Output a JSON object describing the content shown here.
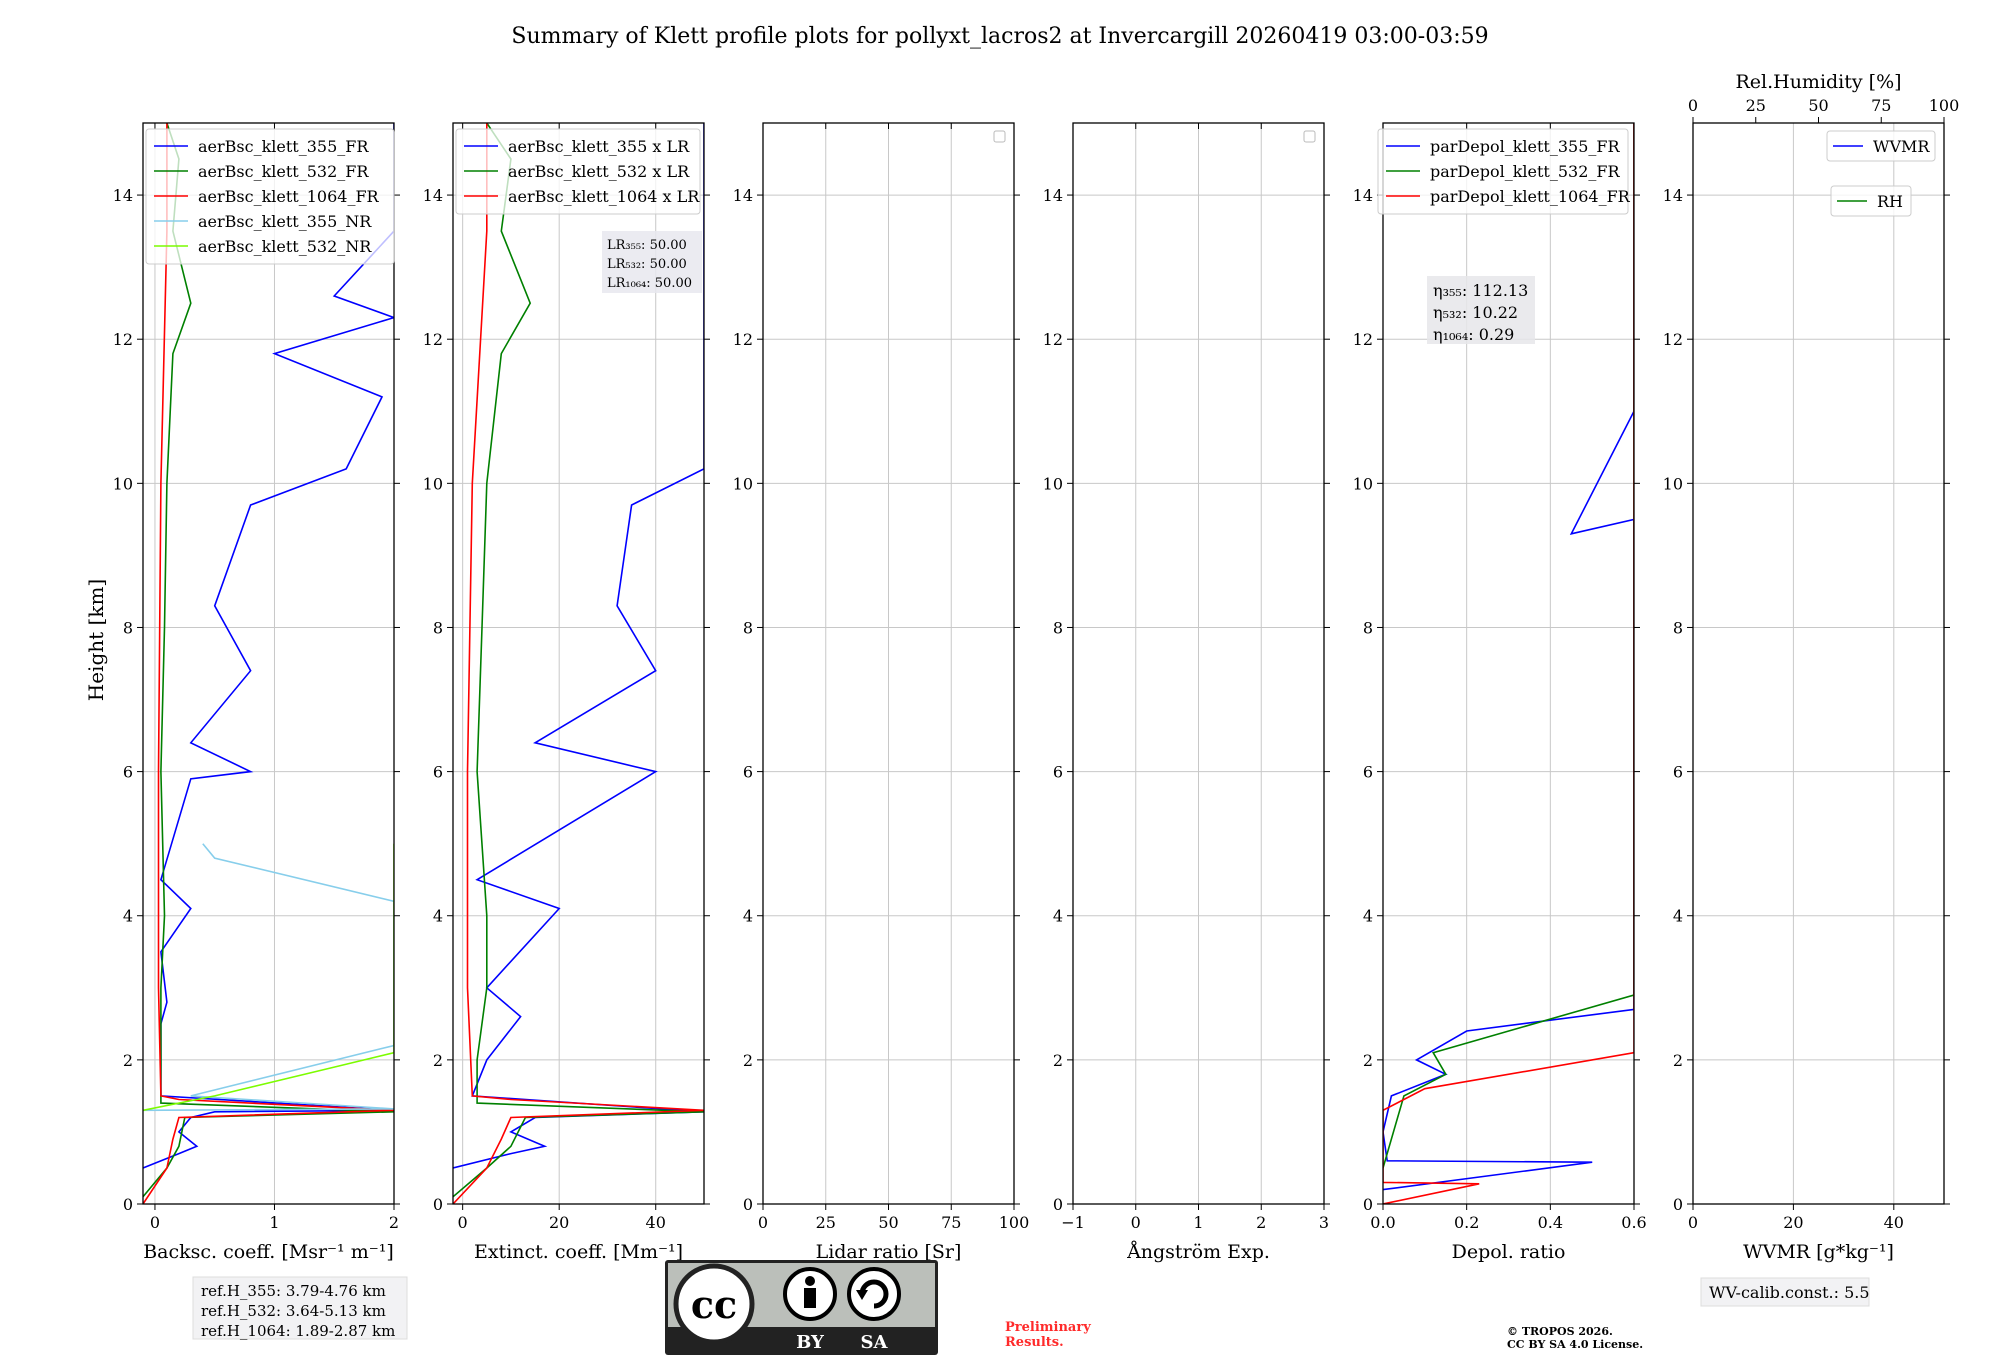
{
  "title": "Summary of Klett profile plots for pollyxt_lacros2 at Invercargill 20260419 03:00-03:59",
  "ylabel": "Height [km]",
  "colors": {
    "b355": "#0000ff",
    "b532": "#008000",
    "b1064": "#ff0000",
    "nr355": "#87ceeb",
    "nr532": "#7cfc00"
  },
  "chart_data": [
    {
      "type": "line",
      "name": "backscatter",
      "xlabel": "Backsc. coeff. [Msr⁻¹ m⁻¹]",
      "xlim": [
        -0.1,
        2
      ],
      "ylim": [
        0,
        15
      ],
      "xticks": [
        "0",
        "1",
        "2"
      ],
      "xtick_values": [
        0,
        1,
        2
      ],
      "legend": [
        "aerBsc_klett_355_FR",
        "aerBsc_klett_532_FR",
        "aerBsc_klett_1064_FR",
        "aerBsc_klett_355_NR",
        "aerBsc_klett_532_NR"
      ],
      "series": [
        {
          "name": "aerBsc_klett_355_FR",
          "color": "b355",
          "points": [
            [
              -0.1,
              0.5
            ],
            [
              0.2,
              0.7
            ],
            [
              0.35,
              0.8
            ],
            [
              0.2,
              1.0
            ],
            [
              0.3,
              1.2
            ],
            [
              0.5,
              1.28
            ],
            [
              2,
              1.3
            ],
            [
              0.05,
              1.5
            ],
            [
              0.05,
              2.5
            ],
            [
              0.1,
              2.8
            ],
            [
              0.05,
              3.5
            ],
            [
              0.3,
              4.1
            ],
            [
              0.05,
              4.5
            ],
            [
              0.3,
              5.9
            ],
            [
              0.8,
              6.0
            ],
            [
              0.3,
              6.4
            ],
            [
              0.8,
              7.4
            ],
            [
              0.5,
              8.3
            ],
            [
              0.8,
              9.7
            ],
            [
              1.6,
              10.2
            ],
            [
              1.9,
              11.2
            ],
            [
              1.0,
              11.8
            ],
            [
              2,
              12.3
            ],
            [
              1.5,
              12.6
            ],
            [
              2,
              13.5
            ],
            [
              2,
              14.3
            ],
            [
              2,
              14.8
            ],
            [
              2,
              15
            ]
          ]
        },
        {
          "name": "aerBsc_klett_532_FR",
          "color": "b532",
          "points": [
            [
              -0.1,
              0.1
            ],
            [
              0.1,
              0.5
            ],
            [
              0.2,
              0.8
            ],
            [
              0.25,
              1.2
            ],
            [
              2,
              1.28
            ],
            [
              0.05,
              1.4
            ],
            [
              0.05,
              2.0
            ],
            [
              0.05,
              3.0
            ],
            [
              0.08,
              4.0
            ],
            [
              0.05,
              6.0
            ],
            [
              0.08,
              8.0
            ],
            [
              0.1,
              10.0
            ],
            [
              0.15,
              11.8
            ],
            [
              0.3,
              12.5
            ],
            [
              0.15,
              13.5
            ],
            [
              0.2,
              14.5
            ],
            [
              0.1,
              15
            ]
          ]
        },
        {
          "name": "aerBsc_klett_1064_FR",
          "color": "b1064",
          "points": [
            [
              -0.1,
              0.0
            ],
            [
              0.1,
              0.5
            ],
            [
              0.15,
              0.9
            ],
            [
              0.2,
              1.2
            ],
            [
              2,
              1.3
            ],
            [
              0.2,
              1.45
            ],
            [
              0.05,
              1.5
            ],
            [
              0.03,
              3.0
            ],
            [
              0.03,
              6.0
            ],
            [
              0.05,
              10.0
            ],
            [
              0.1,
              13.5
            ],
            [
              0.1,
              15
            ]
          ]
        },
        {
          "name": "aerBsc_klett_355_NR",
          "color": "nr355",
          "points": [
            [
              -0.1,
              1.3
            ],
            [
              2,
              1.32
            ],
            [
              0.3,
              1.5
            ],
            [
              2,
              2.2
            ],
            [
              2,
              3.6
            ],
            [
              2,
              4.2
            ],
            [
              0.5,
              4.8
            ],
            [
              0.4,
              5.0
            ]
          ]
        },
        {
          "name": "aerBsc_klett_532_NR",
          "color": "nr532",
          "points": [
            [
              -0.1,
              1.3
            ],
            [
              0.5,
              1.5
            ],
            [
              1.5,
              1.9
            ],
            [
              2,
              2.1
            ],
            [
              2,
              3.6
            ],
            [
              2,
              4.4
            ],
            [
              2,
              5.0
            ]
          ]
        }
      ]
    },
    {
      "type": "line",
      "name": "extinction",
      "xlabel": "Extinct. coeff. [Mm⁻¹]",
      "xlim": [
        -2,
        50
      ],
      "ylim": [
        0,
        15
      ],
      "xticks": [
        "0",
        "20",
        "40"
      ],
      "xtick_values": [
        0,
        20,
        40
      ],
      "legend": [
        "aerBsc_klett_355 x LR",
        "aerBsc_klett_532 x LR",
        "aerBsc_klett_1064 x LR"
      ],
      "annotations": [
        "LR₃₅₅: 50.00",
        "LR₅₃₂: 50.00",
        "LR₁₀₆₄: 50.00"
      ],
      "series": [
        {
          "name": "355xLR",
          "color": "b355",
          "points": [
            [
              -2,
              0.5
            ],
            [
              10,
              0.7
            ],
            [
              17,
              0.8
            ],
            [
              10,
              1.0
            ],
            [
              15,
              1.2
            ],
            [
              50,
              1.28
            ],
            [
              2,
              1.5
            ],
            [
              5,
              2.0
            ],
            [
              12,
              2.6
            ],
            [
              5,
              3.0
            ],
            [
              20,
              4.1
            ],
            [
              3,
              4.5
            ],
            [
              40,
              6.0
            ],
            [
              15,
              6.4
            ],
            [
              40,
              7.4
            ],
            [
              32,
              8.3
            ],
            [
              35,
              9.7
            ],
            [
              50,
              10.2
            ],
            [
              50,
              11.2
            ],
            [
              50,
              12.3
            ],
            [
              50,
              13.5
            ],
            [
              50,
              15
            ]
          ]
        },
        {
          "name": "532xLR",
          "color": "b532",
          "points": [
            [
              -2,
              0.1
            ],
            [
              5,
              0.5
            ],
            [
              10,
              0.8
            ],
            [
              13,
              1.2
            ],
            [
              50,
              1.28
            ],
            [
              3,
              1.4
            ],
            [
              3,
              2.0
            ],
            [
              5,
              3.0
            ],
            [
              5,
              4.0
            ],
            [
              3,
              6.0
            ],
            [
              4,
              8.0
            ],
            [
              5,
              10.0
            ],
            [
              8,
              11.8
            ],
            [
              14,
              12.5
            ],
            [
              8,
              13.5
            ],
            [
              10,
              14.5
            ],
            [
              5,
              15
            ]
          ]
        },
        {
          "name": "1064xLR",
          "color": "b1064",
          "points": [
            [
              -2,
              0.0
            ],
            [
              5,
              0.5
            ],
            [
              8,
              0.9
            ],
            [
              10,
              1.2
            ],
            [
              50,
              1.3
            ],
            [
              10,
              1.45
            ],
            [
              2,
              1.5
            ],
            [
              1,
              3.0
            ],
            [
              1,
              6.0
            ],
            [
              2,
              10.0
            ],
            [
              5,
              13.5
            ],
            [
              5,
              15
            ]
          ]
        }
      ]
    },
    {
      "type": "line",
      "name": "lidar-ratio",
      "xlabel": "Lidar ratio [Sr]",
      "xlim": [
        0,
        100
      ],
      "ylim": [
        0,
        15
      ],
      "xticks": [
        "0",
        "25",
        "50",
        "75",
        "100"
      ],
      "xtick_values": [
        0,
        25,
        50,
        75,
        100
      ],
      "series": []
    },
    {
      "type": "line",
      "name": "angstrom",
      "xlabel": "Ångström Exp.",
      "xlim": [
        -1,
        3
      ],
      "ylim": [
        0,
        15
      ],
      "xticks": [
        "−1",
        "0",
        "1",
        "2",
        "3"
      ],
      "xtick_values": [
        -1,
        0,
        1,
        2,
        3
      ],
      "series": []
    },
    {
      "type": "line",
      "name": "depol",
      "xlabel": "Depol. ratio",
      "xlim": [
        0,
        0.6
      ],
      "ylim": [
        0,
        15
      ],
      "xticks": [
        "0.0",
        "0.2",
        "0.4",
        "0.6"
      ],
      "xtick_values": [
        0,
        0.2,
        0.4,
        0.6
      ],
      "legend": [
        "parDepol_klett_355_FR",
        "parDepol_klett_532_FR",
        "parDepol_klett_1064_FR"
      ],
      "annotations": [
        "η₃₅₅: 112.13",
        "η₅₃₂: 10.22",
        "η₁₀₆₄: 0.29"
      ],
      "series": [
        {
          "name": "355",
          "color": "b355",
          "points": [
            [
              0.0,
              0.2
            ],
            [
              0.5,
              0.58
            ],
            [
              0.01,
              0.6
            ],
            [
              0.0,
              1.0
            ],
            [
              0.02,
              1.5
            ],
            [
              0.15,
              1.8
            ],
            [
              0.08,
              2.0
            ],
            [
              0.2,
              2.4
            ],
            [
              0.6,
              2.7
            ],
            [
              0.6,
              3.6
            ],
            [
              0.6,
              4.0
            ],
            [
              0.6,
              5.5
            ],
            [
              0.6,
              8.2
            ],
            [
              0.6,
              9.5
            ],
            [
              0.45,
              9.3
            ],
            [
              0.6,
              11.0
            ],
            [
              0.6,
              13.0
            ],
            [
              0.6,
              15
            ]
          ]
        },
        {
          "name": "532",
          "color": "b532",
          "points": [
            [
              0.0,
              0.5
            ],
            [
              0.05,
              1.5
            ],
            [
              0.15,
              1.8
            ],
            [
              0.12,
              2.1
            ],
            [
              0.6,
              2.9
            ],
            [
              0.6,
              4.2
            ],
            [
              0.6,
              5.0
            ],
            [
              0.6,
              7.0
            ],
            [
              0.6,
              9.0
            ],
            [
              0.6,
              12.0
            ],
            [
              0.6,
              15
            ]
          ]
        },
        {
          "name": "1064",
          "color": "b1064",
          "points": [
            [
              0.0,
              0.0
            ],
            [
              0.23,
              0.28
            ],
            [
              0.0,
              0.3
            ],
            [
              0.0,
              1.3
            ],
            [
              0.1,
              1.6
            ],
            [
              0.6,
              2.1
            ],
            [
              0.6,
              3.0
            ],
            [
              0.6,
              5.0
            ],
            [
              0.6,
              8.0
            ],
            [
              0.6,
              10.0
            ],
            [
              0.6,
              13.0
            ],
            [
              0.6,
              15
            ]
          ]
        }
      ]
    },
    {
      "type": "line",
      "name": "wvmr",
      "xlabel": "WVMR [g*kg⁻¹]",
      "top_xlabel": "Rel.Humidity [%]",
      "xlim": [
        0,
        50
      ],
      "ylim": [
        0,
        15
      ],
      "xticks": [
        "0",
        "20",
        "40"
      ],
      "xtick_values": [
        0,
        20,
        40
      ],
      "top_xticks": [
        "0",
        "25",
        "50",
        "75",
        "100"
      ],
      "top_xtick_values": [
        0,
        25,
        50,
        75,
        100
      ],
      "legend": [
        "WVMR",
        "RH"
      ],
      "series": []
    }
  ],
  "yticks": [
    "0",
    "2",
    "4",
    "6",
    "8",
    "10",
    "12",
    "14"
  ],
  "ytick_values": [
    0,
    2,
    4,
    6,
    8,
    10,
    12,
    14
  ],
  "footer": {
    "ref_heights": [
      "ref.H_355: 3.79-4.76 km",
      "ref.H_532: 3.64-5.13 km",
      "ref.H_1064: 1.89-2.87 km"
    ],
    "license_badge": {
      "cc": "cc",
      "by": "BY",
      "sa": "SA"
    },
    "preliminary": [
      "Preliminary",
      "Results."
    ],
    "copyright": [
      "© TROPOS 2026.",
      "CC BY SA 4.0 License."
    ],
    "wv_calib": "WV-calib.const.: 5.5"
  }
}
